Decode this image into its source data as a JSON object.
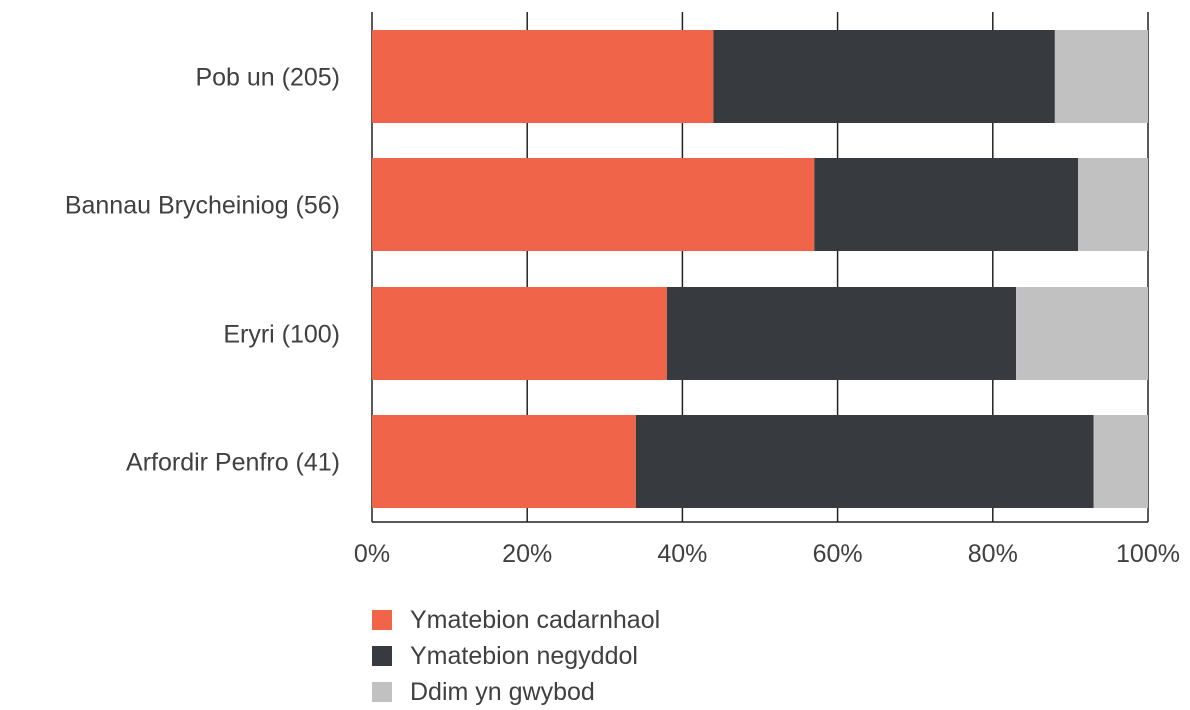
{
  "chart_data": {
    "type": "bar",
    "orientation": "horizontal",
    "stacked": true,
    "categories": [
      "Pob un (205)",
      "Bannau Brycheiniog (56)",
      "Eryri (100)",
      "Arfordir Penfro (41)"
    ],
    "series": [
      {
        "name": "Ymatebion cadarnhaol",
        "color": "#f0644a",
        "values": [
          44,
          57,
          38,
          34
        ]
      },
      {
        "name": "Ymatebion negyddol",
        "color": "#373a3e",
        "values": [
          44,
          34,
          45,
          59
        ]
      },
      {
        "name": "Ddim yn gwybod",
        "color": "#c1c1c1",
        "values": [
          12,
          9,
          17,
          7
        ]
      }
    ],
    "x_ticks": [
      "0%",
      "20%",
      "40%",
      "60%",
      "80%",
      "100%"
    ],
    "xlim": [
      0,
      100
    ],
    "grid": true,
    "legend_position": "bottom"
  }
}
